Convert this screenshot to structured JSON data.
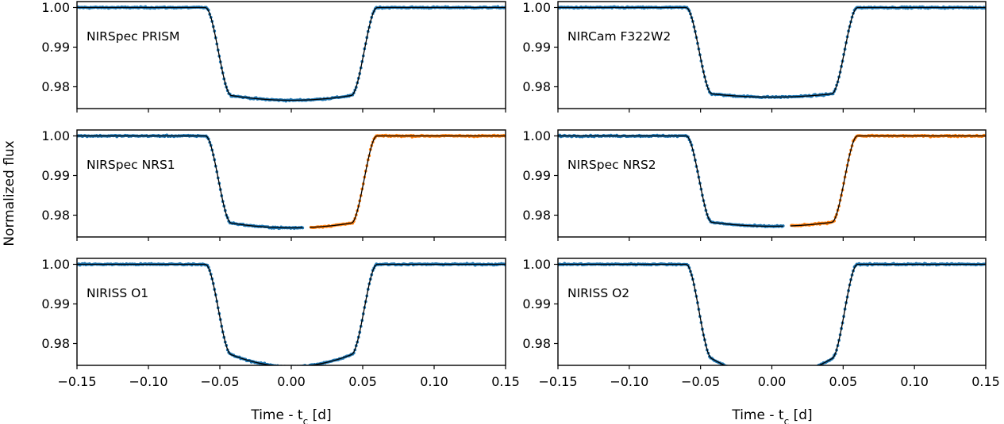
{
  "chart_data": {
    "type": "scatter",
    "ylabel": "Normalized flux",
    "xlabel_main": "Time - t",
    "xlabel_sub": "c",
    "xlabel_unit": " [d]",
    "xlim": [
      -0.15,
      0.15
    ],
    "ylim": [
      0.9745,
      1.0015
    ],
    "xticks": [
      -0.15,
      -0.1,
      -0.05,
      0.0,
      0.05,
      0.1,
      0.15
    ],
    "xtick_labels": [
      "−0.15",
      "−0.10",
      "−0.05",
      "0.00",
      "0.05",
      "0.10",
      "0.15"
    ],
    "yticks": [
      0.98,
      0.99,
      1.0
    ],
    "ytick_labels": [
      "0.98",
      "0.99",
      "1.00"
    ],
    "colors": {
      "data_blue": "#1f77b4",
      "data_orange": "#ff7f0e",
      "model": "#000000"
    },
    "panels": [
      {
        "label": "NIRSpec PRISM",
        "depth": 0.0222,
        "curvature": 0.0012,
        "split": false
      },
      {
        "label": "NIRCam F322W2",
        "depth": 0.0218,
        "curvature": 0.0008,
        "split": false
      },
      {
        "label": "NIRSpec NRS1",
        "depth": 0.022,
        "curvature": 0.0012,
        "split": true,
        "gap_start": 0.008,
        "gap_end": 0.013
      },
      {
        "label": "NIRSpec NRS2",
        "depth": 0.0218,
        "curvature": 0.001,
        "split": true,
        "gap_start": 0.008,
        "gap_end": 0.013
      },
      {
        "label": "NIRISS O1",
        "depth": 0.0228,
        "curvature": 0.003,
        "split": false
      },
      {
        "label": "NIRISS O2",
        "depth": 0.0238,
        "curvature": 0.0045,
        "split": false
      }
    ],
    "transit_model": {
      "t1": -0.06,
      "t2": -0.042,
      "t3": 0.042,
      "t4": 0.06
    }
  }
}
